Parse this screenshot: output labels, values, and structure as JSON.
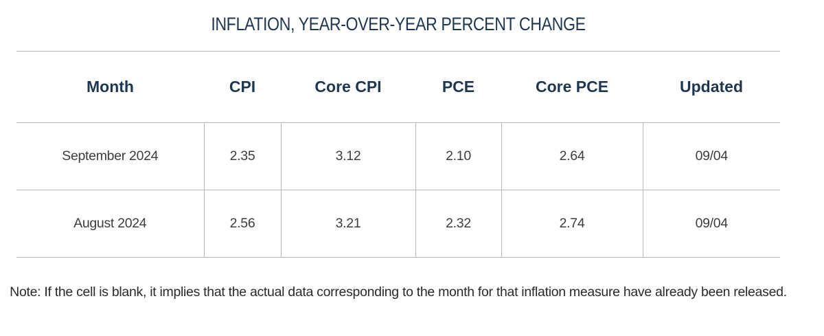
{
  "title": "INFLATION, YEAR-OVER-YEAR PERCENT CHANGE",
  "table": {
    "headers": [
      "Month",
      "CPI",
      "Core CPI",
      "PCE",
      "Core PCE",
      "Updated"
    ],
    "rows": [
      [
        "September 2024",
        "2.35",
        "3.12",
        "2.10",
        "2.64",
        "09/04"
      ],
      [
        "August 2024",
        "2.56",
        "3.21",
        "2.32",
        "2.74",
        "09/04"
      ]
    ]
  },
  "note": "Note: If the cell is blank, it implies that the actual data corresponding to the month for that inflation measure have already been released.",
  "colors": {
    "heading_navy": "#1f3650",
    "body_text": "#3d3d3d",
    "rule": "#b8b8b8"
  }
}
